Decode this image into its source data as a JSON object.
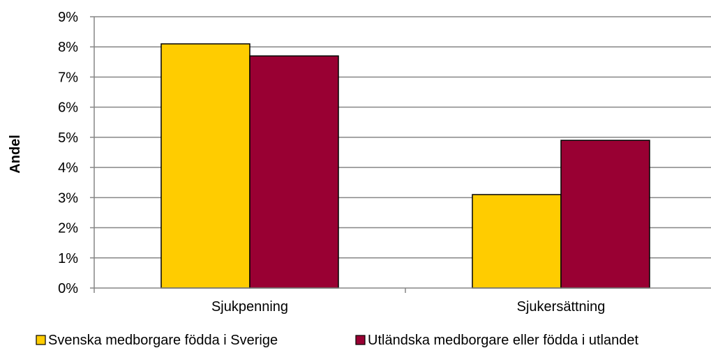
{
  "chart_data": {
    "type": "bar",
    "title": "",
    "xlabel": "",
    "ylabel": "Andel",
    "categories": [
      "Sjukpenning",
      "Sjukersättning"
    ],
    "series": [
      {
        "name": "Svenska medborgare födda i Sverige",
        "color": "#FFCC00",
        "values": [
          0.081,
          0.031
        ]
      },
      {
        "name": "Utländska medborgare eller födda i utlandet",
        "color": "#990033",
        "values": [
          0.077,
          0.049
        ]
      }
    ],
    "ylim": [
      0,
      0.09
    ],
    "yticks": [
      0,
      0.01,
      0.02,
      0.03,
      0.04,
      0.05,
      0.06,
      0.07,
      0.08,
      0.09
    ],
    "ytick_labels": [
      "0%",
      "1%",
      "2%",
      "3%",
      "4%",
      "5%",
      "6%",
      "7%",
      "8%",
      "9%"
    ],
    "grid": true,
    "legend": "bottom"
  }
}
